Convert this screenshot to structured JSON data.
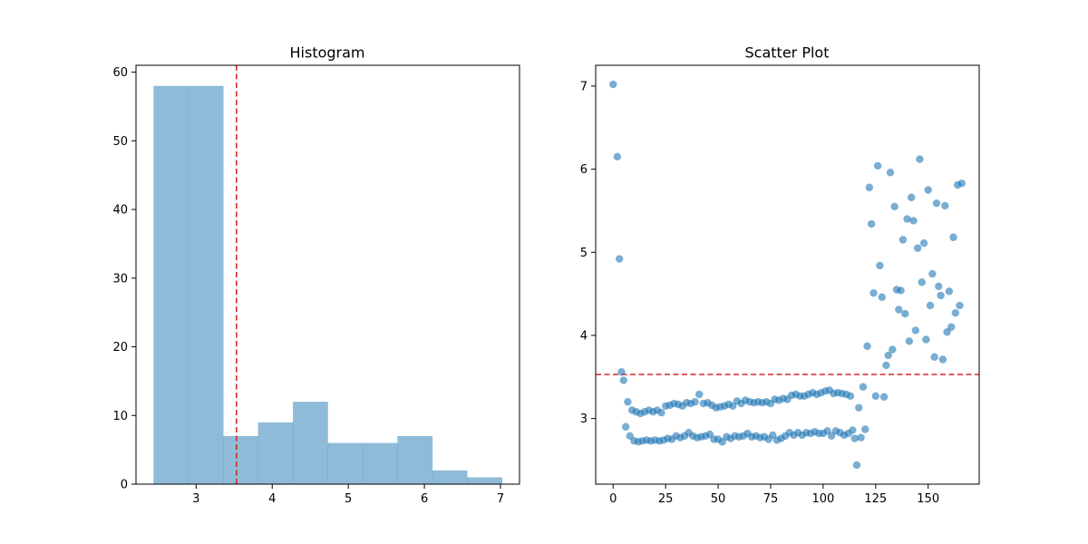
{
  "chart_data": [
    {
      "type": "bar",
      "title": "Histogram",
      "xlabel": "",
      "ylabel": "",
      "bins": [
        2.44,
        2.898,
        3.356,
        3.814,
        4.272,
        4.73,
        5.188,
        5.646,
        6.104,
        6.562,
        7.02
      ],
      "counts": [
        58,
        58,
        7,
        9,
        12,
        6,
        6,
        7,
        2,
        1
      ],
      "reference_line": {
        "x": 3.53,
        "color": "#d62728",
        "style": "dashed"
      },
      "xlim": [
        2.21,
        7.25
      ],
      "ylim": [
        0,
        61
      ],
      "xticks": [
        "3",
        "4",
        "5",
        "6",
        "7"
      ],
      "yticks": [
        "0",
        "10",
        "20",
        "30",
        "40",
        "50",
        "60"
      ],
      "bar_color": "#1f77b4",
      "bar_alpha": 0.5,
      "grid": false
    },
    {
      "type": "scatter",
      "title": "Scatter Plot",
      "xlabel": "",
      "ylabel": "",
      "xlim": [
        -8.3,
        174.3
      ],
      "ylim": [
        2.21,
        7.25
      ],
      "xticks": [
        "0",
        "25",
        "50",
        "75",
        "100",
        "125",
        "150"
      ],
      "yticks": [
        "3",
        "4",
        "5",
        "6",
        "7"
      ],
      "reference_line": {
        "y": 3.53,
        "color": "#d62728",
        "style": "dashed"
      },
      "marker_color": "#1f77b4",
      "marker_alpha": 0.6,
      "grid": false,
      "points": [
        [
          0,
          7.02
        ],
        [
          2,
          6.15
        ],
        [
          3,
          4.92
        ],
        [
          4,
          3.56
        ],
        [
          5,
          3.46
        ],
        [
          6,
          2.9
        ],
        [
          7,
          3.2
        ],
        [
          8,
          2.79
        ],
        [
          9,
          3.1
        ],
        [
          10,
          2.73
        ],
        [
          11,
          3.08
        ],
        [
          12,
          2.72
        ],
        [
          13,
          3.06
        ],
        [
          14,
          2.73
        ],
        [
          15,
          3.08
        ],
        [
          16,
          2.74
        ],
        [
          17,
          3.1
        ],
        [
          18,
          2.73
        ],
        [
          19,
          3.08
        ],
        [
          20,
          2.74
        ],
        [
          21,
          3.1
        ],
        [
          22,
          2.73
        ],
        [
          23,
          3.07
        ],
        [
          24,
          2.74
        ],
        [
          25,
          3.15
        ],
        [
          26,
          2.76
        ],
        [
          27,
          3.16
        ],
        [
          28,
          2.75
        ],
        [
          29,
          3.18
        ],
        [
          30,
          2.79
        ],
        [
          31,
          3.17
        ],
        [
          32,
          2.77
        ],
        [
          33,
          3.15
        ],
        [
          34,
          2.79
        ],
        [
          35,
          3.19
        ],
        [
          36,
          2.83
        ],
        [
          37,
          3.18
        ],
        [
          38,
          2.79
        ],
        [
          39,
          3.2
        ],
        [
          40,
          2.77
        ],
        [
          41,
          3.29
        ],
        [
          42,
          2.78
        ],
        [
          43,
          3.18
        ],
        [
          44,
          2.79
        ],
        [
          45,
          3.19
        ],
        [
          46,
          2.81
        ],
        [
          47,
          3.16
        ],
        [
          48,
          2.75
        ],
        [
          49,
          3.13
        ],
        [
          50,
          2.75
        ],
        [
          51,
          3.14
        ],
        [
          52,
          2.72
        ],
        [
          53,
          3.15
        ],
        [
          54,
          2.78
        ],
        [
          55,
          3.17
        ],
        [
          56,
          2.76
        ],
        [
          57,
          3.15
        ],
        [
          58,
          2.79
        ],
        [
          59,
          3.21
        ],
        [
          60,
          2.78
        ],
        [
          61,
          3.18
        ],
        [
          62,
          2.79
        ],
        [
          63,
          3.22
        ],
        [
          64,
          2.82
        ],
        [
          65,
          3.2
        ],
        [
          66,
          2.78
        ],
        [
          67,
          3.19
        ],
        [
          68,
          2.79
        ],
        [
          69,
          3.2
        ],
        [
          70,
          2.77
        ],
        [
          71,
          3.19
        ],
        [
          72,
          2.78
        ],
        [
          73,
          3.2
        ],
        [
          74,
          2.75
        ],
        [
          75,
          3.18
        ],
        [
          76,
          2.8
        ],
        [
          77,
          3.23
        ],
        [
          78,
          2.74
        ],
        [
          79,
          3.22
        ],
        [
          80,
          2.76
        ],
        [
          81,
          3.24
        ],
        [
          82,
          2.79
        ],
        [
          83,
          3.23
        ],
        [
          84,
          2.83
        ],
        [
          85,
          3.28
        ],
        [
          86,
          2.8
        ],
        [
          87,
          3.29
        ],
        [
          88,
          2.83
        ],
        [
          89,
          3.27
        ],
        [
          90,
          2.8
        ],
        [
          91,
          3.27
        ],
        [
          92,
          2.83
        ],
        [
          93,
          3.29
        ],
        [
          94,
          2.82
        ],
        [
          95,
          3.31
        ],
        [
          96,
          2.84
        ],
        [
          97,
          3.29
        ],
        [
          98,
          2.82
        ],
        [
          99,
          3.31
        ],
        [
          100,
          2.82
        ],
        [
          101,
          3.33
        ],
        [
          102,
          2.85
        ],
        [
          103,
          3.34
        ],
        [
          104,
          2.79
        ],
        [
          105,
          3.3
        ],
        [
          106,
          2.85
        ],
        [
          107,
          3.31
        ],
        [
          108,
          2.83
        ],
        [
          109,
          3.3
        ],
        [
          110,
          2.8
        ],
        [
          111,
          3.29
        ],
        [
          112,
          2.82
        ],
        [
          113,
          3.27
        ],
        [
          114,
          2.86
        ],
        [
          115,
          2.76
        ],
        [
          116,
          2.44
        ],
        [
          117,
          3.13
        ],
        [
          118,
          2.77
        ],
        [
          119,
          3.38
        ],
        [
          120,
          2.87
        ],
        [
          121,
          3.87
        ],
        [
          122,
          5.78
        ],
        [
          123,
          5.34
        ],
        [
          124,
          4.51
        ],
        [
          125,
          3.27
        ],
        [
          126,
          6.04
        ],
        [
          127,
          4.84
        ],
        [
          128,
          4.46
        ],
        [
          129,
          3.26
        ],
        [
          130,
          3.64
        ],
        [
          131,
          3.76
        ],
        [
          132,
          5.96
        ],
        [
          133,
          3.83
        ],
        [
          134,
          5.55
        ],
        [
          135,
          4.55
        ],
        [
          136,
          4.31
        ],
        [
          137,
          4.54
        ],
        [
          138,
          5.15
        ],
        [
          139,
          4.26
        ],
        [
          140,
          5.4
        ],
        [
          141,
          3.93
        ],
        [
          142,
          5.66
        ],
        [
          143,
          5.38
        ],
        [
          144,
          4.06
        ],
        [
          145,
          5.05
        ],
        [
          146,
          6.12
        ],
        [
          147,
          4.64
        ],
        [
          148,
          5.11
        ],
        [
          149,
          3.95
        ],
        [
          150,
          5.75
        ],
        [
          151,
          4.36
        ],
        [
          152,
          4.74
        ],
        [
          153,
          3.74
        ],
        [
          154,
          5.59
        ],
        [
          155,
          4.59
        ],
        [
          156,
          4.48
        ],
        [
          157,
          3.71
        ],
        [
          158,
          5.56
        ],
        [
          159,
          4.04
        ],
        [
          160,
          4.53
        ],
        [
          161,
          4.1
        ],
        [
          162,
          5.18
        ],
        [
          163,
          4.27
        ],
        [
          164,
          5.81
        ],
        [
          165,
          4.36
        ],
        [
          166,
          5.83
        ]
      ]
    }
  ]
}
